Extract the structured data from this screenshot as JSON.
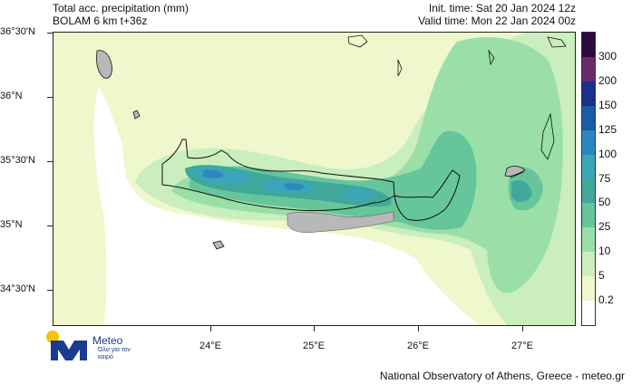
{
  "header": {
    "title_line1": "Total acc. precipitation (mm)",
    "title_line2": "BOLAM 6 km t+36z",
    "init_time": "Init. time: Sat 20 Jan 2024 12z",
    "valid_time": "Valid time: Mon 22 Jan 2024 00z"
  },
  "axes": {
    "lat_labels": [
      "36°30'N",
      "36°N",
      "35°30'N",
      "35°N",
      "34°30'N"
    ],
    "lon_labels": [
      "24°E",
      "25°E",
      "26°E",
      "27°E"
    ]
  },
  "legend": {
    "labels": [
      "300",
      "200",
      "150",
      "125",
      "100",
      "75",
      "50",
      "25",
      "10",
      "5",
      "0.2"
    ],
    "colors": [
      "#2a0a3f",
      "#6b2a6e",
      "#1c2f8a",
      "#1a5aa8",
      "#2c86c0",
      "#3aa6b8",
      "#3fa89a",
      "#66c59a",
      "#9adfa8",
      "#cbeebf",
      "#eef8cc",
      "#ffffff"
    ]
  },
  "logo": {
    "name": "Meteo",
    "tagline": "Όλα για τον καιρό"
  },
  "footer": {
    "credit": "National Observatory of Athens, Greece - meteo.gr"
  }
}
